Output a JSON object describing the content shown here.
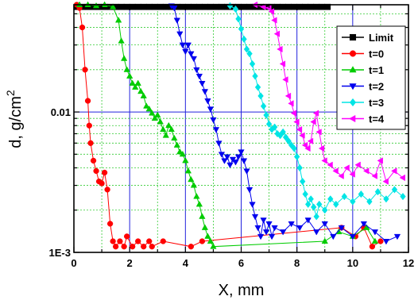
{
  "chart_data": {
    "type": "scatter",
    "title": "",
    "xlabel": "X, mm",
    "ylabel": "d, g/cm²",
    "ylabel_main": "d,  g/cm",
    "ylabel_sup": "2",
    "xlim": [
      0,
      12
    ],
    "ylim": [
      0.001,
      0.058
    ],
    "yscale": "log",
    "x_ticks": [
      "0",
      "2",
      "4",
      "6",
      "8",
      "10",
      "12"
    ],
    "y_ticks": [
      {
        "value": 0.001,
        "label": "1E-3"
      },
      {
        "value": 0.01,
        "label": "0.01"
      }
    ],
    "grid": true,
    "legend_position": "top-right",
    "series": [
      {
        "name": "Limit",
        "color": "#000000",
        "marker": "square",
        "points": [
          [
            0.1,
            0.056
          ],
          [
            0.3,
            0.056
          ],
          [
            0.5,
            0.056
          ],
          [
            0.7,
            0.056
          ],
          [
            0.9,
            0.056
          ],
          [
            1.1,
            0.056
          ],
          [
            1.3,
            0.056
          ],
          [
            1.5,
            0.056
          ],
          [
            1.7,
            0.056
          ],
          [
            1.9,
            0.056
          ],
          [
            2.1,
            0.056
          ],
          [
            2.3,
            0.056
          ],
          [
            2.5,
            0.056
          ],
          [
            2.7,
            0.056
          ],
          [
            2.9,
            0.056
          ],
          [
            3.1,
            0.056
          ],
          [
            3.3,
            0.056
          ],
          [
            3.5,
            0.056
          ],
          [
            3.7,
            0.056
          ],
          [
            3.9,
            0.056
          ],
          [
            4.1,
            0.056
          ],
          [
            4.3,
            0.056
          ],
          [
            4.5,
            0.056
          ],
          [
            4.7,
            0.056
          ],
          [
            4.9,
            0.056
          ],
          [
            5.1,
            0.056
          ],
          [
            5.3,
            0.056
          ],
          [
            5.5,
            0.056
          ],
          [
            5.7,
            0.056
          ],
          [
            5.9,
            0.056
          ],
          [
            6.1,
            0.056
          ],
          [
            6.3,
            0.056
          ],
          [
            6.5,
            0.056
          ],
          [
            6.7,
            0.056
          ],
          [
            6.9,
            0.056
          ],
          [
            7.1,
            0.056
          ],
          [
            7.3,
            0.056
          ],
          [
            7.5,
            0.056
          ],
          [
            7.7,
            0.056
          ],
          [
            7.9,
            0.056
          ],
          [
            8.1,
            0.056
          ],
          [
            8.3,
            0.056
          ],
          [
            8.5,
            0.056
          ],
          [
            8.7,
            0.056
          ],
          [
            8.9,
            0.056
          ],
          [
            9.1,
            0.056
          ]
        ]
      },
      {
        "name": "t=0",
        "color": "#ff0000",
        "marker": "circle",
        "points": [
          [
            0.1,
            0.06
          ],
          [
            0.2,
            0.055
          ],
          [
            0.3,
            0.04
          ],
          [
            0.4,
            0.02
          ],
          [
            0.5,
            0.012
          ],
          [
            0.55,
            0.008
          ],
          [
            0.6,
            0.006
          ],
          [
            0.7,
            0.0045
          ],
          [
            0.8,
            0.0038
          ],
          [
            0.9,
            0.0032
          ],
          [
            1.0,
            0.0031
          ],
          [
            1.1,
            0.0037
          ],
          [
            1.2,
            0.0028
          ],
          [
            1.3,
            0.0016
          ],
          [
            1.4,
            0.0012
          ],
          [
            1.5,
            0.0011
          ],
          [
            1.65,
            0.0012
          ],
          [
            1.8,
            0.0011
          ],
          [
            1.9,
            0.0013
          ],
          [
            2.1,
            0.0011
          ],
          [
            2.3,
            0.0012
          ],
          [
            2.5,
            0.0011
          ],
          [
            2.7,
            0.0012
          ],
          [
            2.8,
            0.0011
          ],
          [
            3.2,
            0.0012
          ],
          [
            4.2,
            0.0011
          ],
          [
            4.6,
            0.0012
          ],
          [
            9.6,
            0.0015
          ],
          [
            10.1,
            0.0013
          ],
          [
            10.4,
            0.0015
          ],
          [
            10.7,
            0.0011
          ],
          [
            11.0,
            0.0012
          ]
        ]
      },
      {
        "name": "t=1",
        "color": "#00cc00",
        "marker": "triangle-up",
        "points": [
          [
            0.2,
            0.058
          ],
          [
            0.5,
            0.058
          ],
          [
            0.8,
            0.057
          ],
          [
            1.1,
            0.058
          ],
          [
            1.4,
            0.056
          ],
          [
            1.6,
            0.045
          ],
          [
            1.7,
            0.032
          ],
          [
            1.8,
            0.024
          ],
          [
            1.9,
            0.02
          ],
          [
            2.0,
            0.018
          ],
          [
            2.1,
            0.016
          ],
          [
            2.2,
            0.015
          ],
          [
            2.3,
            0.016
          ],
          [
            2.4,
            0.014
          ],
          [
            2.5,
            0.013
          ],
          [
            2.6,
            0.011
          ],
          [
            2.7,
            0.0105
          ],
          [
            2.8,
            0.0098
          ],
          [
            2.9,
            0.009
          ],
          [
            3.0,
            0.0095
          ],
          [
            3.1,
            0.0085
          ],
          [
            3.2,
            0.0075
          ],
          [
            3.3,
            0.0068
          ],
          [
            3.4,
            0.008
          ],
          [
            3.5,
            0.0075
          ],
          [
            3.6,
            0.0065
          ],
          [
            3.7,
            0.0058
          ],
          [
            3.8,
            0.0052
          ],
          [
            3.9,
            0.005
          ],
          [
            4.0,
            0.0045
          ],
          [
            4.1,
            0.0038
          ],
          [
            4.2,
            0.0033
          ],
          [
            4.3,
            0.003
          ],
          [
            4.4,
            0.0025
          ],
          [
            4.5,
            0.0022
          ],
          [
            4.6,
            0.0018
          ],
          [
            4.7,
            0.0015
          ],
          [
            4.8,
            0.0013
          ],
          [
            4.9,
            0.0012
          ],
          [
            5.0,
            0.0011
          ],
          [
            9.0,
            0.0012
          ],
          [
            9.5,
            0.0014
          ],
          [
            10.0,
            0.0013
          ],
          [
            10.5,
            0.0015
          ],
          [
            10.8,
            0.0012
          ]
        ]
      },
      {
        "name": "t=2",
        "color": "#0000ee",
        "marker": "triangle-down",
        "points": [
          [
            3.5,
            0.057
          ],
          [
            3.6,
            0.055
          ],
          [
            3.7,
            0.045
          ],
          [
            3.8,
            0.036
          ],
          [
            3.9,
            0.03
          ],
          [
            4.0,
            0.027
          ],
          [
            4.1,
            0.03
          ],
          [
            4.2,
            0.026
          ],
          [
            4.3,
            0.024
          ],
          [
            4.4,
            0.02
          ],
          [
            4.5,
            0.018
          ],
          [
            4.6,
            0.016
          ],
          [
            4.7,
            0.014
          ],
          [
            4.8,
            0.012
          ],
          [
            4.9,
            0.0105
          ],
          [
            5.0,
            0.0088
          ],
          [
            5.1,
            0.0075
          ],
          [
            5.2,
            0.006
          ],
          [
            5.3,
            0.005
          ],
          [
            5.4,
            0.0045
          ],
          [
            5.5,
            0.0048
          ],
          [
            5.6,
            0.0042
          ],
          [
            5.7,
            0.0046
          ],
          [
            5.8,
            0.0044
          ],
          [
            5.9,
            0.0048
          ],
          [
            6.0,
            0.0052
          ],
          [
            6.1,
            0.0045
          ],
          [
            6.2,
            0.0038
          ],
          [
            6.3,
            0.0028
          ],
          [
            6.4,
            0.0022
          ],
          [
            6.5,
            0.0018
          ],
          [
            6.6,
            0.0015
          ],
          [
            6.7,
            0.0013
          ],
          [
            6.8,
            0.0017
          ],
          [
            6.9,
            0.0014
          ],
          [
            7.0,
            0.0016
          ],
          [
            7.1,
            0.0013
          ],
          [
            7.2,
            0.0015
          ],
          [
            7.5,
            0.0014
          ],
          [
            7.8,
            0.0016
          ],
          [
            8.1,
            0.0015
          ],
          [
            8.4,
            0.0017
          ],
          [
            8.7,
            0.0014
          ],
          [
            9.0,
            0.0016
          ],
          [
            9.3,
            0.0013
          ],
          [
            9.6,
            0.0015
          ],
          [
            10.0,
            0.0013
          ],
          [
            10.4,
            0.0016
          ],
          [
            10.8,
            0.0014
          ],
          [
            11.2,
            0.0012
          ],
          [
            11.6,
            0.0013
          ]
        ]
      },
      {
        "name": "t=3",
        "color": "#00e5e5",
        "marker": "diamond",
        "points": [
          [
            5.6,
            0.057
          ],
          [
            5.8,
            0.054
          ],
          [
            5.9,
            0.046
          ],
          [
            6.0,
            0.039
          ],
          [
            6.1,
            0.033
          ],
          [
            6.2,
            0.028
          ],
          [
            6.3,
            0.026
          ],
          [
            6.4,
            0.022
          ],
          [
            6.5,
            0.018
          ],
          [
            6.6,
            0.015
          ],
          [
            6.7,
            0.013
          ],
          [
            6.8,
            0.011
          ],
          [
            6.9,
            0.0095
          ],
          [
            7.0,
            0.0082
          ],
          [
            7.1,
            0.0075
          ],
          [
            7.2,
            0.0078
          ],
          [
            7.3,
            0.007
          ],
          [
            7.4,
            0.0068
          ],
          [
            7.5,
            0.0072
          ],
          [
            7.6,
            0.0066
          ],
          [
            7.7,
            0.0062
          ],
          [
            7.8,
            0.0058
          ],
          [
            7.9,
            0.0055
          ],
          [
            8.0,
            0.0048
          ],
          [
            8.1,
            0.004
          ],
          [
            8.2,
            0.0032
          ],
          [
            8.3,
            0.0026
          ],
          [
            8.4,
            0.0022
          ],
          [
            8.5,
            0.0024
          ],
          [
            8.6,
            0.0021
          ],
          [
            8.7,
            0.0018
          ],
          [
            8.8,
            0.0022
          ],
          [
            9.0,
            0.002
          ],
          [
            9.2,
            0.0024
          ],
          [
            9.4,
            0.0022
          ],
          [
            9.7,
            0.0025
          ],
          [
            10.0,
            0.0023
          ],
          [
            10.3,
            0.0026
          ],
          [
            10.6,
            0.0023
          ],
          [
            10.9,
            0.0027
          ],
          [
            11.2,
            0.0024
          ],
          [
            11.5,
            0.0028
          ],
          [
            11.8,
            0.0025
          ]
        ]
      },
      {
        "name": "t=4",
        "color": "#ff00ff",
        "marker": "triangle-left",
        "points": [
          [
            6.5,
            0.058
          ],
          [
            6.8,
            0.056
          ],
          [
            7.0,
            0.055
          ],
          [
            7.1,
            0.052
          ],
          [
            7.2,
            0.045
          ],
          [
            7.3,
            0.036
          ],
          [
            7.4,
            0.028
          ],
          [
            7.5,
            0.022
          ],
          [
            7.6,
            0.017
          ],
          [
            7.7,
            0.013
          ],
          [
            7.8,
            0.0115
          ],
          [
            7.9,
            0.0098
          ],
          [
            8.0,
            0.0085
          ],
          [
            8.1,
            0.0075
          ],
          [
            8.2,
            0.0068
          ],
          [
            8.3,
            0.0058
          ],
          [
            8.4,
            0.0055
          ],
          [
            8.5,
            0.0062
          ],
          [
            8.6,
            0.0085
          ],
          [
            8.7,
            0.0098
          ],
          [
            8.8,
            0.0072
          ],
          [
            8.9,
            0.0055
          ],
          [
            9.0,
            0.0045
          ],
          [
            9.2,
            0.0042
          ],
          [
            9.4,
            0.0038
          ],
          [
            9.6,
            0.0035
          ],
          [
            9.8,
            0.004
          ],
          [
            10.0,
            0.0036
          ],
          [
            10.2,
            0.0042
          ],
          [
            10.5,
            0.0038
          ],
          [
            10.8,
            0.0035
          ],
          [
            11.0,
            0.0045
          ],
          [
            11.2,
            0.0032
          ],
          [
            11.5,
            0.0038
          ],
          [
            11.8,
            0.0034
          ]
        ]
      }
    ]
  }
}
